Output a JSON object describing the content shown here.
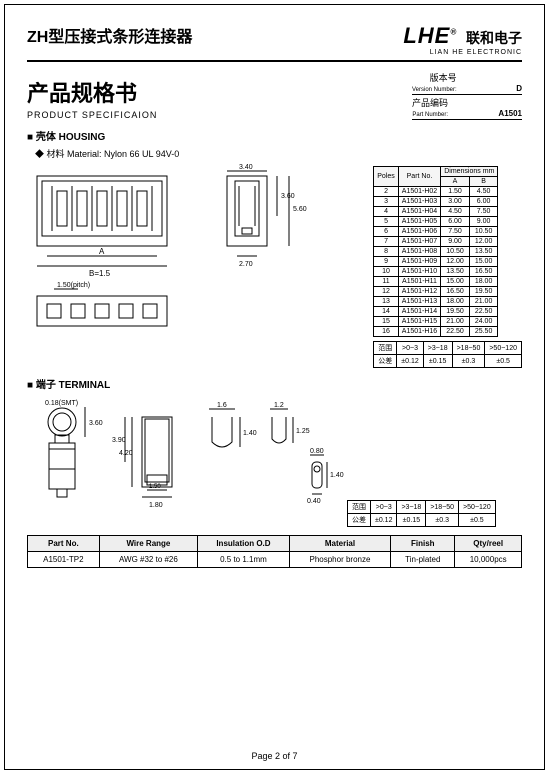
{
  "header": {
    "title_cn": "ZH型压接式条形连接器",
    "logo": "LHE",
    "reg": "®",
    "company_cn": "联和电子",
    "company_en": "LIAN HE ELECTRONIC"
  },
  "doc": {
    "title_cn": "产品规格书",
    "title_en": "PRODUCT SPECIFICAION",
    "version_label_cn": "版本号",
    "version_label_en": "Version Number:",
    "version": "D",
    "part_label_cn": "产品编码",
    "part_label_en": "Part Number:",
    "part": "A1501"
  },
  "housing": {
    "section": "■ 壳体 HOUSING",
    "material": "◆ 材料 Material: Nylon 66 UL 94V-0",
    "dim_header": {
      "poles": "Poles",
      "partno": "Part No.",
      "dims": "Dimensions mm",
      "a": "A",
      "b": "B"
    },
    "rows": [
      {
        "p": "2",
        "pn": "A1501-H02",
        "a": "1.50",
        "b": "4.50"
      },
      {
        "p": "3",
        "pn": "A1501-H03",
        "a": "3.00",
        "b": "6.00"
      },
      {
        "p": "4",
        "pn": "A1501-H04",
        "a": "4.50",
        "b": "7.50"
      },
      {
        "p": "5",
        "pn": "A1501-H05",
        "a": "6.00",
        "b": "9.00"
      },
      {
        "p": "6",
        "pn": "A1501-H06",
        "a": "7.50",
        "b": "10.50"
      },
      {
        "p": "7",
        "pn": "A1501-H07",
        "a": "9.00",
        "b": "12.00"
      },
      {
        "p": "8",
        "pn": "A1501-H08",
        "a": "10.50",
        "b": "13.50"
      },
      {
        "p": "9",
        "pn": "A1501-H09",
        "a": "12.00",
        "b": "15.00"
      },
      {
        "p": "10",
        "pn": "A1501-H10",
        "a": "13.50",
        "b": "16.50"
      },
      {
        "p": "11",
        "pn": "A1501-H11",
        "a": "15.00",
        "b": "18.00"
      },
      {
        "p": "12",
        "pn": "A1501-H12",
        "a": "16.50",
        "b": "19.50"
      },
      {
        "p": "13",
        "pn": "A1501-H13",
        "a": "18.00",
        "b": "21.00"
      },
      {
        "p": "14",
        "pn": "A1501-H14",
        "a": "19.50",
        "b": "22.50"
      },
      {
        "p": "15",
        "pn": "A1501-H15",
        "a": "21.00",
        "b": "24.00"
      },
      {
        "p": "16",
        "pn": "A1501-H16",
        "a": "22.50",
        "b": "25.50"
      }
    ],
    "tol": {
      "r1": [
        "范围",
        ">0~3",
        ">3~18",
        ">18~50",
        ">50~120"
      ],
      "r2": [
        "公差",
        "±0.12",
        "±0.15",
        "±0.3",
        "±0.5"
      ]
    },
    "dims": {
      "w1": "3.40",
      "h1": "3.60",
      "h2": "5.60",
      "w2": "2.70",
      "pitch": "1.50(pitch)",
      "a": "A",
      "b": "B=1.5"
    }
  },
  "terminal": {
    "section": "■ 端子 TERMINAL",
    "dims": {
      "t": "0.18(SMT)",
      "h1": "3.60",
      "h2": "4.20",
      "h3": "3.90",
      "w1": "1.50",
      "w2": "1.80",
      "w3": "1.6",
      "h4": "1.40",
      "w4": "1.2",
      "h5": "1.25",
      "w5": "0.80",
      "h6": "1.40",
      "h7": "0.40"
    },
    "tol": {
      "r1": [
        "范围",
        ">0~3",
        ">3~18",
        ">18~50",
        ">50~120"
      ],
      "r2": [
        "公差",
        "±0.12",
        "±0.15",
        "±0.3",
        "±0.5"
      ]
    }
  },
  "bottom": {
    "headers": [
      "Part No.",
      "Wire Range",
      "Insulation O.D",
      "Material",
      "Finish",
      "Qty/reel"
    ],
    "row": [
      "A1501-TP2",
      "AWG #32 to #26",
      "0.5 to 1.1mm",
      "Phosphor bronze",
      "Tin-plated",
      "10,000pcs"
    ]
  },
  "page": "Page 2 of 7"
}
